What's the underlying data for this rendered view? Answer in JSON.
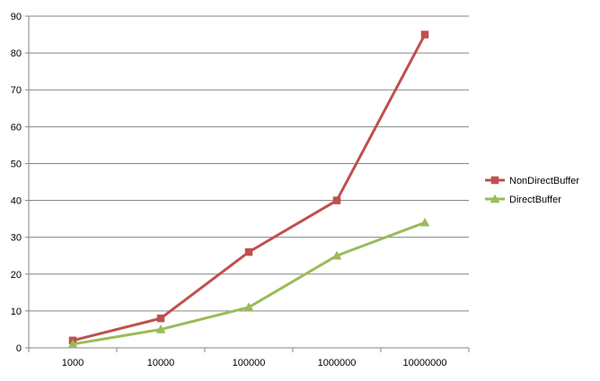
{
  "chart_data": {
    "type": "line",
    "title": "",
    "xlabel": "",
    "ylabel": "",
    "categories": [
      "1000",
      "10000",
      "100000",
      "1000000",
      "10000000"
    ],
    "ylim": [
      0,
      90
    ],
    "yticks": [
      0,
      10,
      20,
      30,
      40,
      50,
      60,
      70,
      80,
      90
    ],
    "grid": "horizontal",
    "legend": "right",
    "series": [
      {
        "name": "NonDirectBuffer",
        "values": [
          2,
          8,
          26,
          40,
          85
        ],
        "color": "#c0504d",
        "marker": "square"
      },
      {
        "name": "DirectBuffer",
        "values": [
          1,
          5,
          11,
          25,
          34
        ],
        "color": "#9bbb59",
        "marker": "triangle"
      }
    ]
  }
}
